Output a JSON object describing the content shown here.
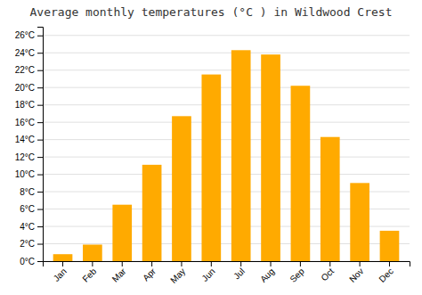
{
  "chart_data": {
    "type": "bar",
    "title": "Average monthly temperatures (°C ) in Wildwood Crest",
    "categories": [
      "Jan",
      "Feb",
      "Mar",
      "Apr",
      "May",
      "Jun",
      "Jul",
      "Aug",
      "Sep",
      "Oct",
      "Nov",
      "Dec"
    ],
    "values": [
      0.8,
      1.9,
      6.5,
      11.1,
      16.7,
      21.5,
      24.3,
      23.8,
      20.2,
      14.3,
      9.0,
      3.5
    ],
    "color": "#FFAA00",
    "ylim": [
      0,
      27
    ],
    "yticks": [
      {
        "value": 0,
        "label": "0°C"
      },
      {
        "value": 2,
        "label": "2°C"
      },
      {
        "value": 4,
        "label": "4°C"
      },
      {
        "value": 6,
        "label": "6°C"
      },
      {
        "value": 8,
        "label": "8°C"
      },
      {
        "value": 10,
        "label": "10°C"
      },
      {
        "value": 12,
        "label": "12°C"
      },
      {
        "value": 14,
        "label": "14°C"
      },
      {
        "value": 16,
        "label": "16°C"
      },
      {
        "value": 18,
        "label": "18°C"
      },
      {
        "value": 20,
        "label": "20°C"
      },
      {
        "value": 22,
        "label": "22°C"
      },
      {
        "value": 24,
        "label": "24°C"
      },
      {
        "value": 26,
        "label": "26°C"
      }
    ],
    "grid": true
  }
}
